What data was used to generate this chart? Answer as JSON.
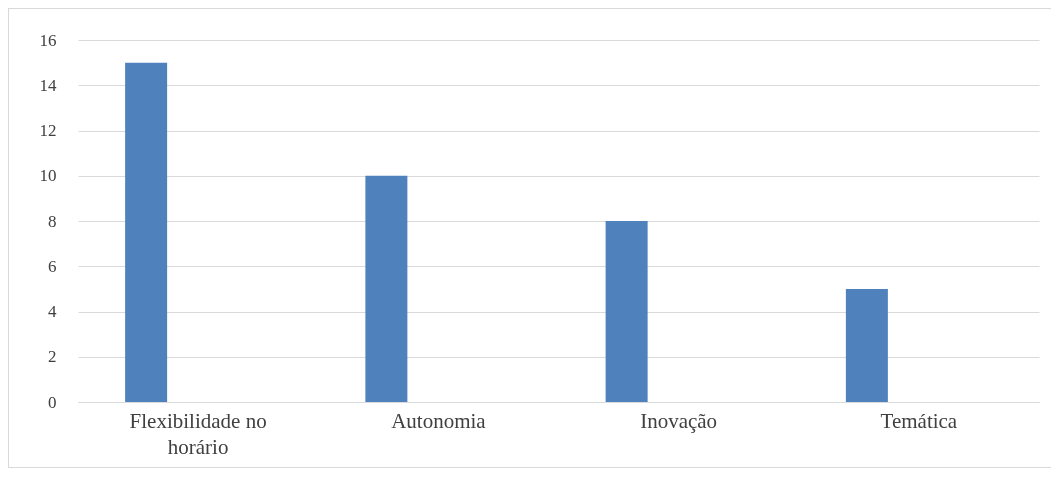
{
  "chart_data": {
    "type": "bar",
    "categories": [
      "Flexibilidade no horário",
      "Autonomia",
      "Inovação",
      "Temática"
    ],
    "values": [
      15,
      10,
      8,
      5
    ],
    "color": "#4f81bd",
    "ylim": [
      0,
      16
    ],
    "yticks": [
      0,
      2,
      4,
      6,
      8,
      10,
      12,
      14,
      16
    ],
    "grid": "y"
  }
}
